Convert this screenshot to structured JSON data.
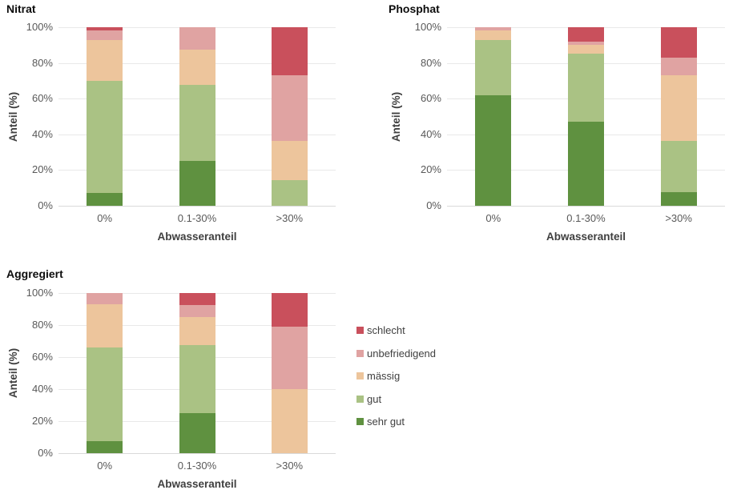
{
  "figure": {
    "background": "#ffffff",
    "grid_color": "#e9e9e9",
    "axis_line_color": "#d9d9d9",
    "tick_text_color": "#595959",
    "axis_title_color": "#3f3f3f"
  },
  "legend": {
    "position": "right-of-aggregiert-chart",
    "items": [
      {
        "label": "schlecht",
        "color": "#c9505c"
      },
      {
        "label": "unbefriedigend",
        "color": "#e0a3a2"
      },
      {
        "label": "mässig",
        "color": "#edc59c"
      },
      {
        "label": "gut",
        "color": "#aac284"
      },
      {
        "label": "sehr gut",
        "color": "#5f9140"
      }
    ]
  },
  "chart_data": [
    {
      "type": "bar",
      "stacked": true,
      "stack_order": "bottom-to-top",
      "title": "Nitrat",
      "xlabel": "Abwasseranteil",
      "ylabel": "Anteil (%)",
      "ylim": [
        0,
        100
      ],
      "grid": true,
      "ytick_labels": [
        "0%",
        "20%",
        "40%",
        "60%",
        "80%",
        "100%"
      ],
      "categories": [
        "0%",
        "0.1-30%",
        ">30%"
      ],
      "series": [
        {
          "name": "sehr gut",
          "color": "#5f9140",
          "values": [
            7,
            25,
            0
          ]
        },
        {
          "name": "gut",
          "color": "#aac284",
          "values": [
            63,
            42.5,
            14.5
          ]
        },
        {
          "name": "mässig",
          "color": "#edc59c",
          "values": [
            23,
            20,
            22
          ]
        },
        {
          "name": "unbefriedigend",
          "color": "#e0a3a2",
          "values": [
            5,
            12.5,
            36.5
          ]
        },
        {
          "name": "schlecht",
          "color": "#c9505c",
          "values": [
            2,
            0,
            27
          ]
        }
      ]
    },
    {
      "type": "bar",
      "stacked": true,
      "stack_order": "bottom-to-top",
      "title": "Phosphat",
      "xlabel": "Abwasseranteil",
      "ylabel": "Anteil (%)",
      "ylim": [
        0,
        100
      ],
      "grid": true,
      "ytick_labels": [
        "0%",
        "20%",
        "40%",
        "60%",
        "80%",
        "100%"
      ],
      "categories": [
        "0%",
        "0.1-30%",
        ">30%"
      ],
      "series": [
        {
          "name": "sehr gut",
          "color": "#5f9140",
          "values": [
            62,
            47,
            7.5
          ]
        },
        {
          "name": "gut",
          "color": "#aac284",
          "values": [
            31,
            38,
            29
          ]
        },
        {
          "name": "mässig",
          "color": "#edc59c",
          "values": [
            5,
            5,
            36.5
          ]
        },
        {
          "name": "unbefriedigend",
          "color": "#e0a3a2",
          "values": [
            2,
            2,
            10
          ]
        },
        {
          "name": "schlecht",
          "color": "#c9505c",
          "values": [
            0,
            8,
            17
          ]
        }
      ]
    },
    {
      "type": "bar",
      "stacked": true,
      "stack_order": "bottom-to-top",
      "title": "Aggregiert",
      "xlabel": "Abwasseranteil",
      "ylabel": "Anteil (%)",
      "ylim": [
        0,
        100
      ],
      "grid": true,
      "ytick_labels": [
        "0%",
        "20%",
        "40%",
        "60%",
        "80%",
        "100%"
      ],
      "categories": [
        "0%",
        "0.1-30%",
        ">30%"
      ],
      "series": [
        {
          "name": "sehr gut",
          "color": "#5f9140",
          "values": [
            7.5,
            25,
            0
          ]
        },
        {
          "name": "gut",
          "color": "#aac284",
          "values": [
            58.5,
            42.5,
            0
          ]
        },
        {
          "name": "mässig",
          "color": "#edc59c",
          "values": [
            27,
            17.5,
            40
          ]
        },
        {
          "name": "unbefriedigend",
          "color": "#e0a3a2",
          "values": [
            7,
            7.5,
            39
          ]
        },
        {
          "name": "schlecht",
          "color": "#c9505c",
          "values": [
            0,
            7.5,
            21
          ]
        }
      ]
    }
  ]
}
